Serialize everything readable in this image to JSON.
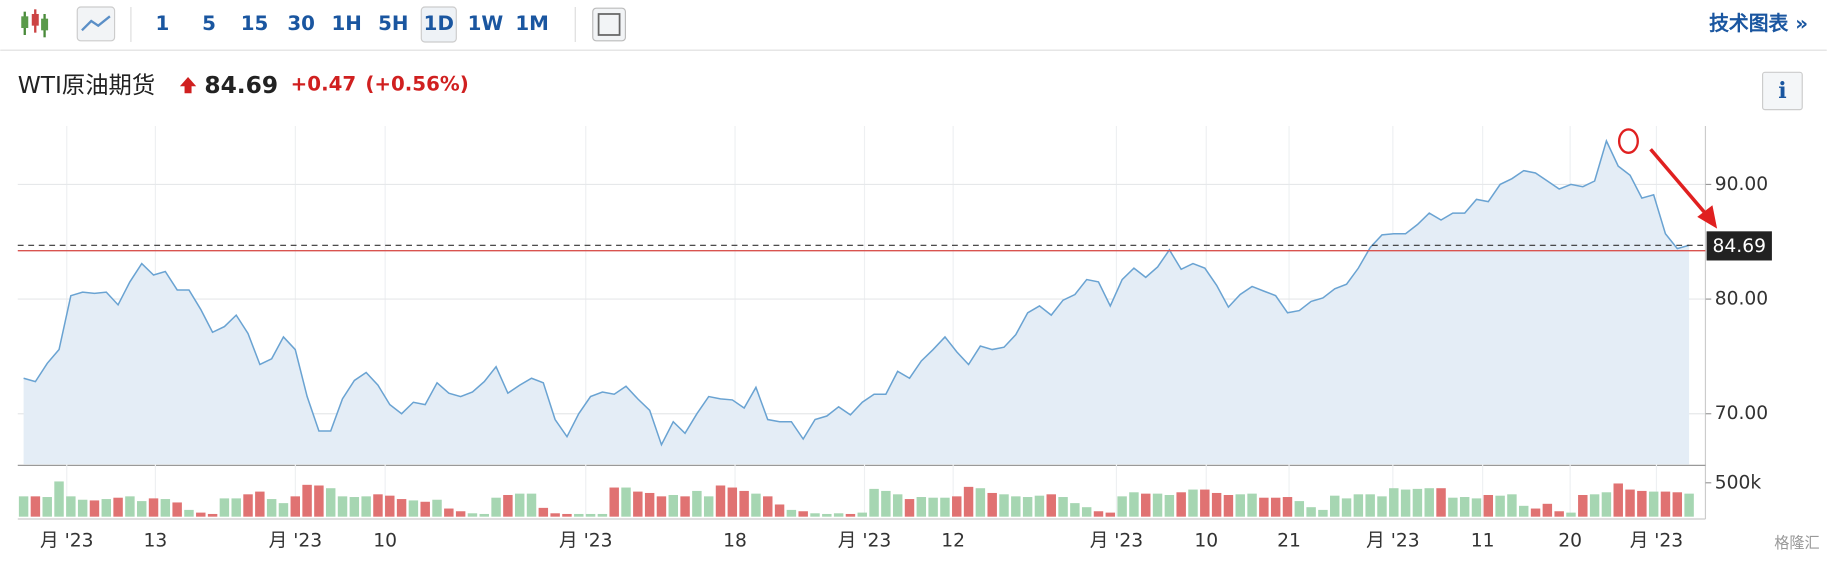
{
  "toolbar": {
    "intervals": [
      "1",
      "5",
      "15",
      "30",
      "1H",
      "5H",
      "1D",
      "1W",
      "1M"
    ],
    "selected": "1D",
    "technical_chart": "技术图表 »"
  },
  "chart_data": {
    "type": "line",
    "title": "WTI原油期货",
    "last_price": 84.69,
    "change": "+0.47",
    "change_percent": "(+0.56%)",
    "color": "#6aa3d2",
    "fill": "#e4edf6",
    "values": [
      73.1,
      72.8,
      74.4,
      75.6,
      80.3,
      80.6,
      80.5,
      80.6,
      79.5,
      81.5,
      83.1,
      82.1,
      82.4,
      80.8,
      80.8,
      79.1,
      77.1,
      77.6,
      78.6,
      77.0,
      74.3,
      74.8,
      76.7,
      75.6,
      71.5,
      68.5,
      68.5,
      71.3,
      72.9,
      73.6,
      72.5,
      70.8,
      70.0,
      71.0,
      70.8,
      72.7,
      71.8,
      71.5,
      71.9,
      72.8,
      74.1,
      71.8,
      72.5,
      73.1,
      72.7,
      69.5,
      68.0,
      70.0,
      71.5,
      71.9,
      71.7,
      72.4,
      71.3,
      70.3,
      67.3,
      69.3,
      68.3,
      70.0,
      71.5,
      71.3,
      71.2,
      70.5,
      72.3,
      69.5,
      69.3,
      69.3,
      67.8,
      69.5,
      69.8,
      70.6,
      69.9,
      71.0,
      71.7,
      71.7,
      73.7,
      73.1,
      74.6,
      75.6,
      76.7,
      75.4,
      74.3,
      75.9,
      75.6,
      75.8,
      76.9,
      78.8,
      79.4,
      78.6,
      79.9,
      80.4,
      81.7,
      81.5,
      79.4,
      81.7,
      82.7,
      81.9,
      82.8,
      84.3,
      82.6,
      83.1,
      82.7,
      81.2,
      79.3,
      80.4,
      81.1,
      80.7,
      80.3,
      78.8,
      79.0,
      79.8,
      80.1,
      80.9,
      81.3,
      82.7,
      84.5,
      85.6,
      85.7,
      85.7,
      86.5,
      87.5,
      86.9,
      87.5,
      87.5,
      88.7,
      88.5,
      90.0,
      90.5,
      91.2,
      91.0,
      90.3,
      89.6,
      90.0,
      89.8,
      90.3,
      93.8,
      91.6,
      90.8,
      88.8,
      89.1,
      85.7,
      84.4,
      84.69
    ],
    "ylim": [
      65.6,
      95.1
    ],
    "yticks": [
      {
        "value": 70,
        "label": "70.00"
      },
      {
        "value": 80,
        "label": "80.00"
      },
      {
        "value": 90,
        "label": "90.00"
      }
    ],
    "grid": true,
    "reference_line": 84.22,
    "reference_color": "#d9534f",
    "volume": {
      "up_color": "#a6d6b2",
      "down_color": "#e07272",
      "ylim": [
        0,
        740000
      ],
      "yticks": [
        {
          "value": 500000,
          "label": "500k"
        }
      ],
      "values": [
        300000,
        300000,
        290000,
        520000,
        300000,
        250000,
        240000,
        260000,
        280000,
        300000,
        230000,
        270000,
        260000,
        210000,
        100000,
        60000,
        40000,
        270000,
        270000,
        330000,
        370000,
        260000,
        200000,
        300000,
        470000,
        460000,
        420000,
        300000,
        290000,
        300000,
        330000,
        310000,
        260000,
        240000,
        220000,
        250000,
        120000,
        80000,
        50000,
        40000,
        280000,
        320000,
        340000,
        340000,
        130000,
        50000,
        40000,
        40000,
        40000,
        40000,
        430000,
        430000,
        370000,
        350000,
        300000,
        320000,
        300000,
        380000,
        300000,
        460000,
        430000,
        380000,
        340000,
        300000,
        180000,
        100000,
        80000,
        50000,
        40000,
        50000,
        40000,
        60000,
        410000,
        380000,
        330000,
        260000,
        290000,
        280000,
        280000,
        300000,
        440000,
        420000,
        350000,
        330000,
        300000,
        290000,
        310000,
        330000,
        290000,
        200000,
        140000,
        80000,
        60000,
        300000,
        360000,
        340000,
        340000,
        320000,
        360000,
        400000,
        400000,
        350000,
        320000,
        330000,
        340000,
        280000,
        280000,
        290000,
        230000,
        140000,
        100000,
        310000,
        270000,
        330000,
        330000,
        300000,
        420000,
        400000,
        410000,
        420000,
        420000,
        280000,
        290000,
        270000,
        320000,
        310000,
        330000,
        160000,
        120000,
        190000,
        80000,
        60000,
        320000,
        330000,
        360000,
        490000,
        400000,
        380000,
        370000,
        370000,
        360000,
        340000
      ]
    },
    "x_labels": [
      "月 '23",
      "13",
      "月 '23",
      "10",
      "月 '23",
      "18",
      "月 '23",
      "12",
      "月 '23",
      "10",
      "21",
      "月 '23",
      "11",
      "20",
      "月 '23"
    ],
    "watermark": "格隆汇"
  }
}
